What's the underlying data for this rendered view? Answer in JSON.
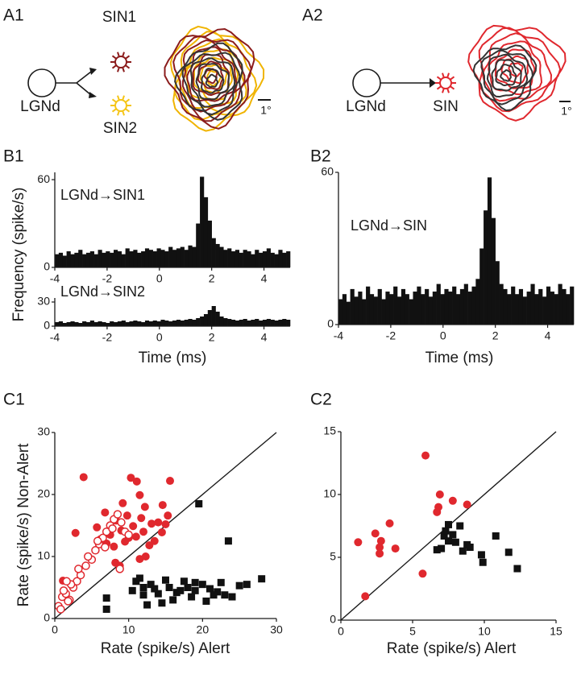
{
  "diagrams": [
    {
      "panel": "A1",
      "source": "LGNd",
      "targets": [
        "SIN1",
        "SIN2"
      ],
      "scale": "1°"
    },
    {
      "panel": "A2",
      "source": "LGNd",
      "targets": [
        "SIN"
      ],
      "scale": "1°"
    }
  ],
  "chart_data": [
    {
      "type": "histogram",
      "panel": "B1",
      "ylabel": "Frequency (spike/s)",
      "annotation": "LGNd→SIN1",
      "color": "#111111",
      "bins": [
        -4,
        -3.85,
        -3.7,
        -3.55,
        -3.4,
        -3.25,
        -3.1,
        -2.95,
        -2.8,
        -2.65,
        -2.5,
        -2.35,
        -2.2,
        -2.05,
        -1.9,
        -1.75,
        -1.6,
        -1.45,
        -1.3,
        -1.15,
        -1,
        -0.85,
        -0.7,
        -0.55,
        -0.4,
        -0.25,
        -0.1,
        0.05,
        0.2,
        0.35,
        0.5,
        0.65,
        0.8,
        0.95,
        1.1,
        1.25,
        1.4,
        1.55,
        1.7,
        1.85,
        2,
        2.15,
        2.3,
        2.45,
        2.6,
        2.75,
        2.9,
        3.05,
        3.2,
        3.35,
        3.5,
        3.65,
        3.8,
        3.95,
        4.1,
        4.25,
        4.4,
        4.55,
        4.7,
        4.85,
        5
      ],
      "values": [
        9,
        10,
        8,
        11,
        9,
        10,
        12,
        9,
        10,
        11,
        9,
        12,
        10,
        11,
        10,
        12,
        11,
        9,
        13,
        11,
        12,
        10,
        11,
        13,
        12,
        11,
        13,
        12,
        11,
        14,
        12,
        13,
        14,
        12,
        15,
        14,
        30,
        62,
        48,
        32,
        20,
        16,
        14,
        12,
        13,
        11,
        12,
        10,
        12,
        11,
        9,
        12,
        10,
        11,
        13,
        10,
        9,
        12,
        10,
        11
      ],
      "xlim": [
        -4,
        5
      ],
      "xticks": [
        -4,
        -2,
        0,
        2,
        4
      ],
      "ylim": [
        0,
        65
      ],
      "yticks": [
        0,
        60
      ]
    },
    {
      "type": "histogram",
      "xlabel": "Time (ms)",
      "annotation": "LGNd→SIN2",
      "color": "#111111",
      "bins": [
        -4,
        -3.85,
        -3.7,
        -3.55,
        -3.4,
        -3.25,
        -3.1,
        -2.95,
        -2.8,
        -2.65,
        -2.5,
        -2.35,
        -2.2,
        -2.05,
        -1.9,
        -1.75,
        -1.6,
        -1.45,
        -1.3,
        -1.15,
        -1,
        -0.85,
        -0.7,
        -0.55,
        -0.4,
        -0.25,
        -0.1,
        0.05,
        0.2,
        0.35,
        0.5,
        0.65,
        0.8,
        0.95,
        1.1,
        1.25,
        1.4,
        1.55,
        1.7,
        1.85,
        2,
        2.15,
        2.3,
        2.45,
        2.6,
        2.75,
        2.9,
        3.05,
        3.2,
        3.35,
        3.5,
        3.65,
        3.8,
        3.95,
        4.1,
        4.25,
        4.4,
        4.55,
        4.7,
        4.85,
        5
      ],
      "values": [
        5,
        6,
        4,
        5,
        6,
        5,
        4,
        6,
        5,
        7,
        5,
        6,
        5,
        4,
        6,
        5,
        6,
        7,
        5,
        6,
        7,
        6,
        5,
        7,
        6,
        7,
        6,
        8,
        7,
        6,
        7,
        8,
        7,
        8,
        9,
        8,
        10,
        12,
        15,
        20,
        25,
        18,
        12,
        10,
        9,
        8,
        7,
        8,
        9,
        7,
        8,
        9,
        7,
        8,
        9,
        8,
        7,
        8,
        9,
        8
      ],
      "xlim": [
        -4,
        5
      ],
      "xticks": [
        -4,
        -2,
        0,
        2,
        4
      ],
      "ylim": [
        0,
        35
      ],
      "yticks": [
        0,
        30
      ]
    },
    {
      "type": "histogram",
      "panel": "B2",
      "xlabel": "Time (ms)",
      "annotation": "LGNd→SIN",
      "color": "#111111",
      "bins": [
        -4,
        -3.85,
        -3.7,
        -3.55,
        -3.4,
        -3.25,
        -3.1,
        -2.95,
        -2.8,
        -2.65,
        -2.5,
        -2.35,
        -2.2,
        -2.05,
        -1.9,
        -1.75,
        -1.6,
        -1.45,
        -1.3,
        -1.15,
        -1,
        -0.85,
        -0.7,
        -0.55,
        -0.4,
        -0.25,
        -0.1,
        0.05,
        0.2,
        0.35,
        0.5,
        0.65,
        0.8,
        0.95,
        1.1,
        1.25,
        1.4,
        1.55,
        1.7,
        1.85,
        2,
        2.15,
        2.3,
        2.45,
        2.6,
        2.75,
        2.9,
        3.05,
        3.2,
        3.35,
        3.5,
        3.65,
        3.8,
        3.95,
        4.1,
        4.25,
        4.4,
        4.55,
        4.7,
        4.85,
        5
      ],
      "values": [
        10,
        12,
        9,
        14,
        11,
        13,
        10,
        15,
        12,
        11,
        14,
        10,
        13,
        12,
        15,
        11,
        14,
        12,
        10,
        13,
        15,
        12,
        14,
        11,
        13,
        16,
        12,
        14,
        13,
        15,
        12,
        14,
        16,
        13,
        15,
        18,
        30,
        45,
        58,
        42,
        25,
        16,
        14,
        12,
        15,
        12,
        14,
        11,
        13,
        16,
        12,
        14,
        11,
        15,
        13,
        12,
        16,
        14,
        12,
        15
      ],
      "xlim": [
        -4,
        5
      ],
      "xticks": [
        -4,
        -2,
        0,
        2,
        4
      ],
      "ylim": [
        0,
        60
      ],
      "yticks": [
        0,
        60
      ]
    },
    {
      "type": "scatter",
      "panel": "C1",
      "xlabel": "Rate (spike/s) Alert",
      "ylabel": "Rate (spike/s) Non-Alert",
      "identity_line": true,
      "xlim": [
        0,
        30
      ],
      "xticks": [
        0,
        10,
        20,
        30
      ],
      "ylim": [
        0,
        30
      ],
      "yticks": [
        0,
        10,
        20,
        30
      ],
      "series": [
        {
          "color": "#e0282e",
          "marker": "circle",
          "x": [
            3.9,
            10.3,
            11.1,
            15.6,
            11.5,
            9.2,
            12.2,
            14.6,
            15.3,
            6.8,
            9.8,
            11.7,
            13.1,
            14.5,
            10.6,
            5.7,
            7.5,
            8.3,
            9,
            10,
            12,
            13.5,
            6.2,
            7,
            8,
            9.5,
            11,
            12.8,
            14,
            15,
            2.8,
            1.1,
            8.2,
            8.8,
            11.5,
            12.3
          ],
          "values": [
            22.8,
            22.7,
            22.1,
            22.2,
            19.9,
            18.6,
            18,
            18.3,
            16.6,
            17.1,
            16.6,
            16.2,
            15.3,
            13.9,
            14.9,
            14.7,
            13.5,
            15.8,
            14.2,
            13,
            14,
            12.5,
            12.8,
            12.1,
            11.6,
            12.4,
            13.2,
            11.8,
            15.5,
            15.2,
            13.8,
            6.1,
            9,
            8.5,
            9.6,
            10
          ]
        },
        {
          "color": "#e0282e",
          "marker": "open-circle",
          "x": [
            0.5,
            1,
            1.5,
            2,
            2.5,
            3,
            1.2,
            1.8,
            0.8,
            2.2,
            3.5,
            4.2,
            5,
            5.5,
            6,
            6.5,
            7,
            7.5,
            8,
            8.5,
            9,
            9.5,
            10,
            4.5,
            5.8,
            6.8,
            7.8,
            8.8,
            3.2,
            1.6
          ],
          "values": [
            2,
            3.5,
            4,
            3,
            5,
            6,
            4.5,
            2.8,
            1.5,
            5.5,
            7,
            8.5,
            9.5,
            11,
            12,
            13,
            14,
            15,
            16,
            16.8,
            15.5,
            14,
            13.5,
            10,
            12.5,
            11.5,
            14.5,
            8,
            8,
            6
          ]
        },
        {
          "color": "#111111",
          "marker": "square",
          "x": [
            19.5,
            23.5,
            7,
            7,
            11,
            12,
            13,
            14,
            15,
            16,
            12.5,
            14.5,
            17,
            18,
            19,
            20,
            21,
            22,
            23,
            24,
            25,
            26,
            28,
            18.5,
            20.5,
            22.5,
            15.5,
            13.5,
            11.5,
            12,
            16.5,
            19,
            21.5,
            17.5,
            10.5
          ],
          "values": [
            18.5,
            12.5,
            3.3,
            1.5,
            6,
            3.8,
            5.5,
            4,
            6.2,
            3,
            2.2,
            2.5,
            4.5,
            5,
            5.8,
            5.5,
            4.8,
            4.3,
            3.8,
            3.5,
            5.3,
            5.5,
            6.4,
            3.5,
            2.8,
            5.8,
            5,
            4.8,
            6.5,
            5,
            4.2,
            4.5,
            3.8,
            6,
            4.5
          ]
        }
      ]
    },
    {
      "type": "scatter",
      "panel": "C2",
      "xlabel": "Rate (spike/s) Alert",
      "identity_line": true,
      "xlim": [
        0,
        15
      ],
      "xticks": [
        0,
        5,
        10,
        15
      ],
      "ylim": [
        0,
        15
      ],
      "yticks": [
        0,
        5,
        10,
        15
      ],
      "series": [
        {
          "color": "#e0282e",
          "marker": "circle",
          "x": [
            1.2,
            1.7,
            2.4,
            2.8,
            2.7,
            2.7,
            3.4,
            3.8,
            5.7,
            5.9,
            6.7,
            6.8,
            6.9,
            7.8,
            8.8
          ],
          "values": [
            6.2,
            1.9,
            6.9,
            6.3,
            5.8,
            5.3,
            7.7,
            5.7,
            3.7,
            13.1,
            8.6,
            9,
            10,
            9.5,
            9.2
          ]
        },
        {
          "color": "#111111",
          "marker": "square",
          "x": [
            6.7,
            7,
            7.2,
            7.3,
            7.5,
            7.5,
            8,
            8.3,
            8.5,
            8.8,
            9,
            9.8,
            9.9,
            10.8,
            11.7,
            12.3,
            7.8
          ],
          "values": [
            5.6,
            5.7,
            6.7,
            7.1,
            7.6,
            6.3,
            6.2,
            7.5,
            5.5,
            6,
            5.8,
            5.2,
            4.6,
            6.7,
            5.4,
            4.1,
            6.8
          ]
        }
      ]
    }
  ]
}
